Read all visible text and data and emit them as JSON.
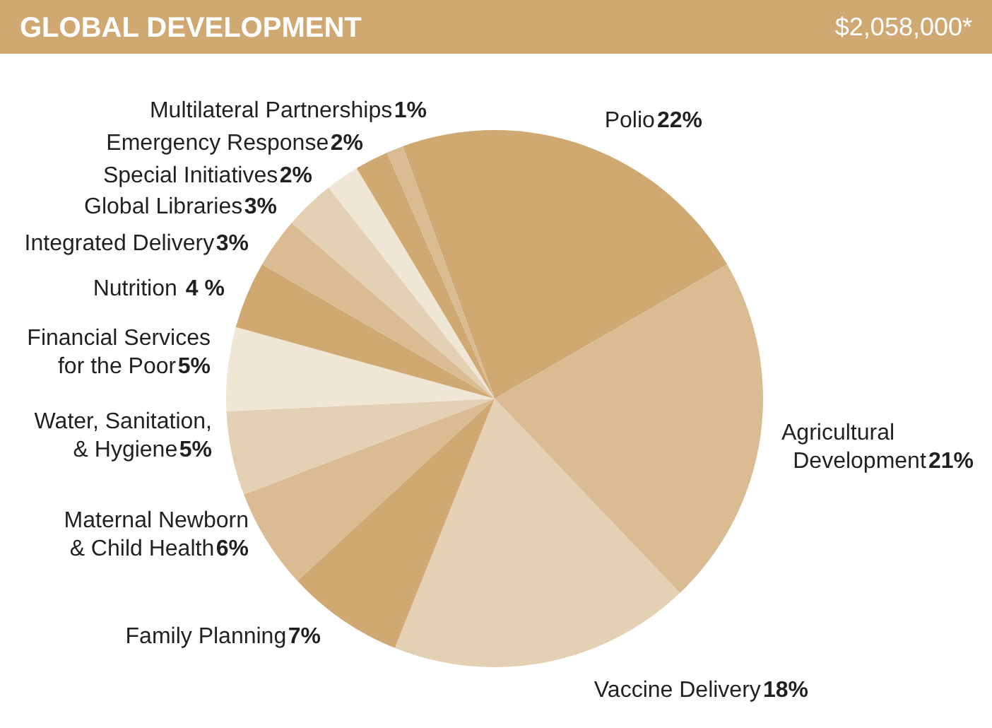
{
  "chart_data": {
    "type": "pie",
    "title": "GLOBAL DEVELOPMENT",
    "subtitle": "$2,058,000*",
    "categories": [
      "Polio",
      "Agricultural Development",
      "Vaccine Delivery",
      "Family Planning",
      "Maternal Newborn & Child Health",
      "Water, Sanitation, & Hygiene",
      "Financial Services for the Poor",
      "Nutrition",
      "Integrated Delivery",
      "Global Libraries",
      "Special Initiatives",
      "Emergency Response",
      "Multilateral Partnerships"
    ],
    "values": [
      22,
      21,
      18,
      7,
      6,
      5,
      5,
      4,
      3,
      3,
      2,
      2,
      1
    ],
    "value_labels": [
      "22%",
      "21%",
      "18%",
      "7%",
      "6%",
      "5%",
      "5%",
      "4 %",
      "3%",
      "3%",
      "2%",
      "2%",
      "1%"
    ],
    "colors": [
      "#cfa872",
      "#dbbc92",
      "#e4d0b2",
      "#cfa872",
      "#dbbc92",
      "#e4d0b2",
      "#f0e6d6",
      "#cfa872",
      "#dbbc92",
      "#e4d0b2",
      "#f0e6d6",
      "#cfa872",
      "#dbbc92"
    ]
  }
}
